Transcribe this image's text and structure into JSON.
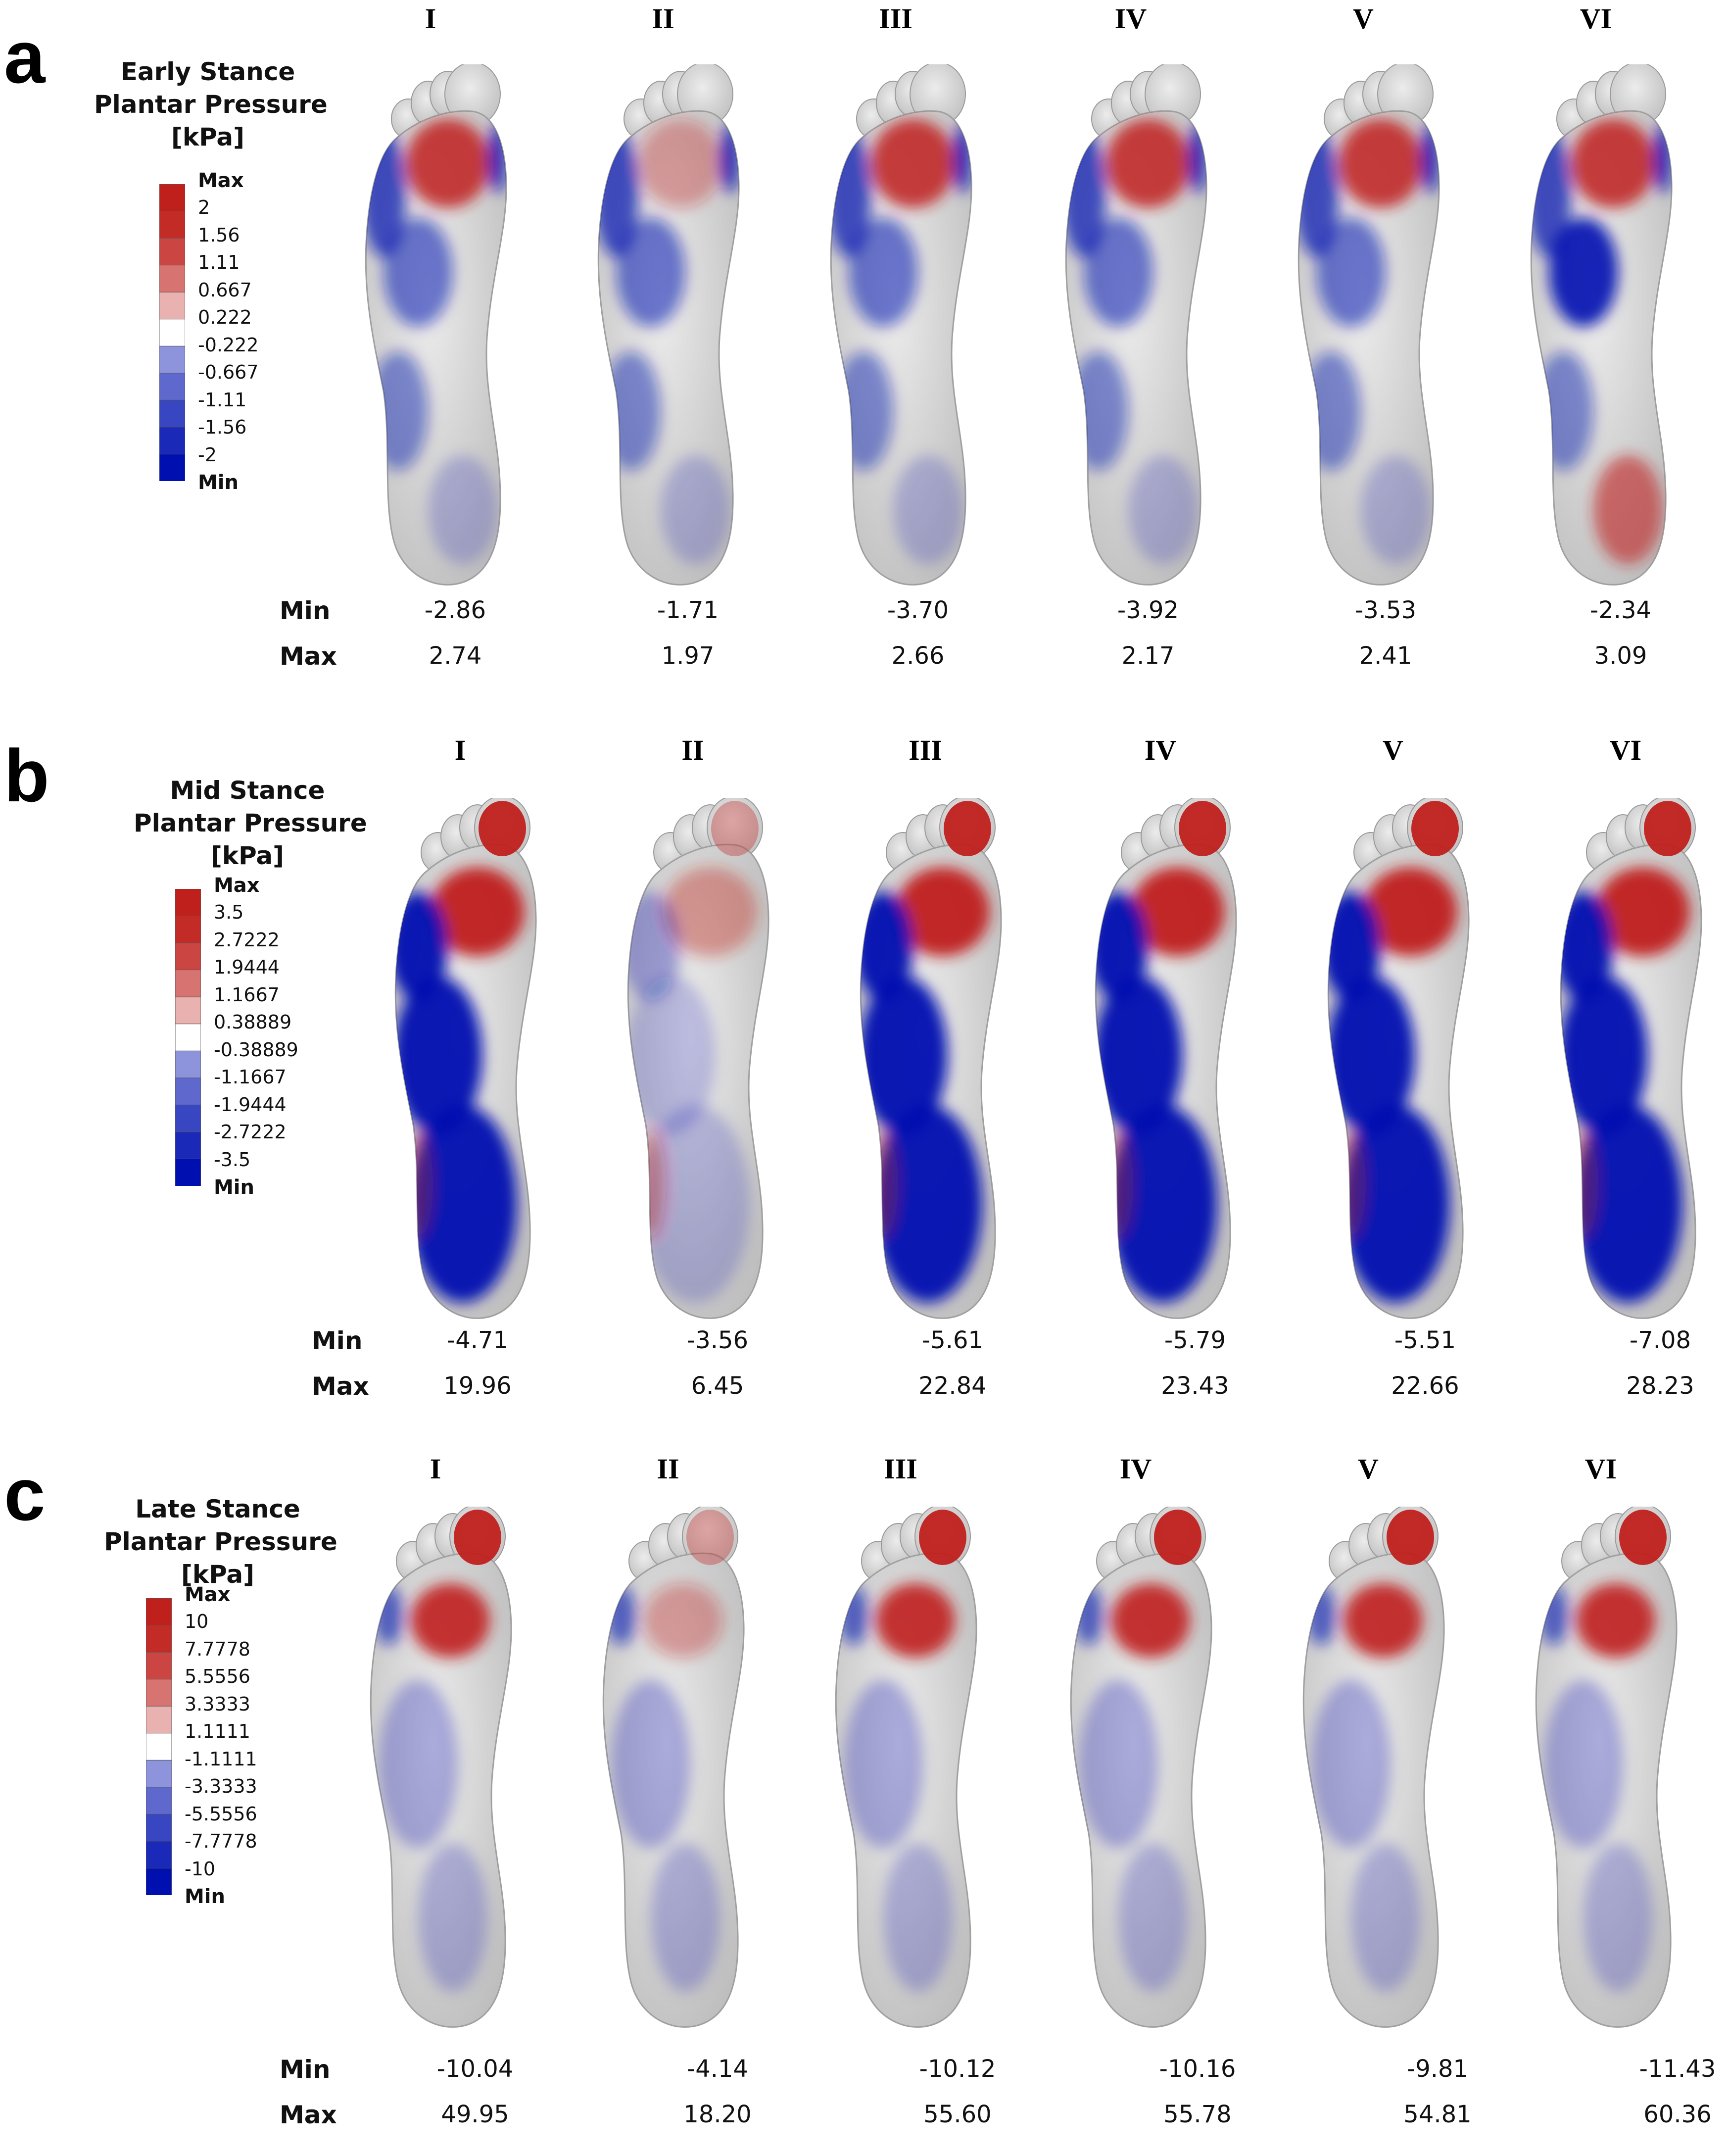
{
  "case_labels": [
    "I",
    "II",
    "III",
    "IV",
    "V",
    "VI"
  ],
  "row_labels": {
    "min": "Min",
    "max": "Max"
  },
  "colors": {
    "max": "#c0201c",
    "min": "#0010b0",
    "neutral": "#ffffff",
    "foot": "#d9d9d9"
  },
  "panels": [
    {
      "letter": "a",
      "title_lines": [
        "Early Stance",
        "Plantar Pressure",
        "[kPa]"
      ],
      "legend_labels": [
        "Max",
        "2",
        "1.56",
        "1.11",
        "0.667",
        "0.222",
        "-0.222",
        "-0.667",
        "-1.11",
        "-1.56",
        "-2",
        "Min"
      ],
      "min_values": [
        "-2.86",
        "-1.71",
        "-3.70",
        "-3.92",
        "-3.53",
        "-2.34"
      ],
      "max_values": [
        "2.74",
        "1.97",
        "2.66",
        "2.17",
        "2.41",
        "3.09"
      ],
      "pattern": "early"
    },
    {
      "letter": "b",
      "title_lines": [
        "Mid Stance",
        "Plantar Pressure",
        "[kPa]"
      ],
      "legend_labels": [
        "Max",
        "3.5",
        "2.7222",
        "1.9444",
        "1.1667",
        "0.38889",
        "-0.38889",
        "-1.1667",
        "-1.9444",
        "-2.7222",
        "-3.5",
        "Min"
      ],
      "min_values": [
        "-4.71",
        "-3.56",
        "-5.61",
        "-5.79",
        "-5.51",
        "-7.08"
      ],
      "max_values": [
        "19.96",
        "6.45",
        "22.84",
        "23.43",
        "22.66",
        "28.23"
      ],
      "pattern": "mid"
    },
    {
      "letter": "c",
      "title_lines": [
        "Late Stance",
        "Plantar Pressure",
        "[kPa]"
      ],
      "legend_labels": [
        "Max",
        "10",
        "7.7778",
        "5.5556",
        "3.3333",
        "1.1111",
        "-1.1111",
        "-3.3333",
        "-5.5556",
        "-7.7778",
        "-10",
        "Min"
      ],
      "min_values": [
        "-10.04",
        "-4.14",
        "-10.12",
        "-10.16",
        "-9.81",
        "-11.43"
      ],
      "max_values": [
        "49.95",
        "18.20",
        "55.60",
        "55.78",
        "54.81",
        "60.36"
      ],
      "pattern": "late"
    }
  ]
}
